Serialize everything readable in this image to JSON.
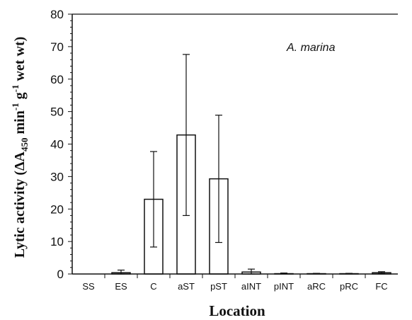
{
  "chart_data": {
    "type": "bar",
    "annotation": "A. marina",
    "xlabel": "Location",
    "ylabel": {
      "prefix": "Lytic activity (ΔA",
      "sub": "450",
      "mid1": " min",
      "sup1": "-1",
      "mid2": " g",
      "sup2": "-1",
      "suffix": " wet wt)"
    },
    "ylim": [
      0,
      80
    ],
    "yticks": [
      0,
      10,
      20,
      30,
      40,
      50,
      60,
      70,
      80
    ],
    "grid": false,
    "categories": [
      "SS",
      "ES",
      "C",
      "aST",
      "pST",
      "aINT",
      "pINT",
      "aRC",
      "pRC",
      "FC"
    ],
    "values": [
      0,
      0.4,
      23,
      42.8,
      29.3,
      0.6,
      0.1,
      0.1,
      0.1,
      0.4
    ],
    "errors": [
      0,
      0.8,
      14.7,
      24.8,
      19.6,
      0.9,
      0.2,
      0.1,
      0.1,
      0.3
    ]
  }
}
